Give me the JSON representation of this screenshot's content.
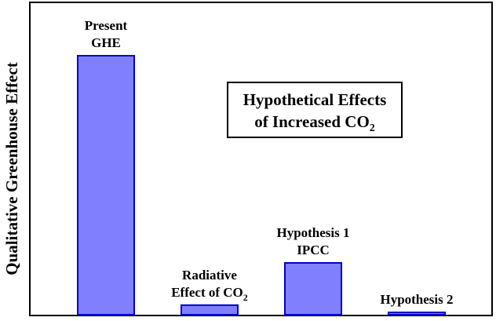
{
  "chart_data": {
    "type": "bar",
    "ylabel": "Qualitative Greenhouse Effect",
    "xlabel": "",
    "ylim": [
      0,
      100
    ],
    "grid": false,
    "bar_color": "#8080ff",
    "bar_edge_color": "#0000cc",
    "categories": [
      [
        "Present",
        "GHE"
      ],
      [
        "Radiative",
        "Effect of CO|2"
      ],
      [
        "Hypothesis 1",
        "IPCC"
      ],
      [
        "Hypothesis 2"
      ]
    ],
    "values": [
      100,
      3.7,
      20,
      0.9
    ],
    "annotation": [
      "Hypothetical Effects",
      "of Increased CO|2"
    ]
  }
}
